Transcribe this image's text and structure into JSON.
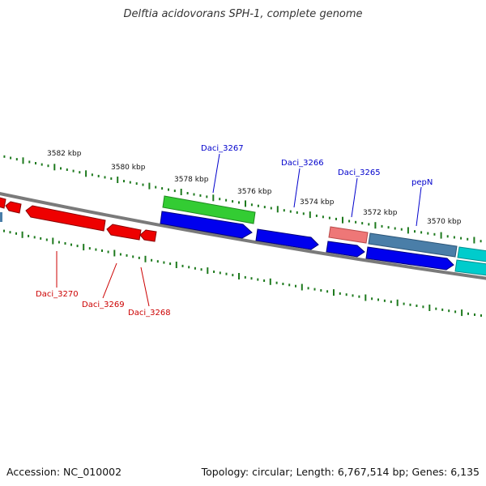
{
  "title": "Delftia acidovorans SPH-1, complete genome",
  "footer": {
    "accession": "Accession: NC_010002",
    "summary": "Topology: circular; Length: 6,767,514 bp; Genes: 6,135"
  },
  "colors": {
    "backbone": "#7a7a7a",
    "tick": "#1e7a1e",
    "forward_label": "#0000cc",
    "reverse_label": "#cc0000",
    "forward_cds": "#0000ee",
    "reverse_cds": "#ee0000",
    "rna": "#33cc33",
    "other": "#ee7777",
    "pepN": "#4a7ea8",
    "cyan_feature": "#00cccc"
  },
  "ticks": [
    {
      "label": "3582 kbp"
    },
    {
      "label": "3580 kbp"
    },
    {
      "label": "3578 kbp"
    },
    {
      "label": "3576 kbp"
    },
    {
      "label": "3574 kbp"
    },
    {
      "label": "3572 kbp"
    },
    {
      "label": "3570 kbp"
    }
  ],
  "gene_labels": [
    {
      "text": "Daci_3267",
      "strand": "forward"
    },
    {
      "text": "Daci_3266",
      "strand": "forward"
    },
    {
      "text": "Daci_3265",
      "strand": "forward"
    },
    {
      "text": "pepN",
      "strand": "forward"
    },
    {
      "text": "Daci_3270",
      "strand": "reverse"
    },
    {
      "text": "Daci_3269",
      "strand": "reverse"
    },
    {
      "text": "Daci_3268",
      "strand": "reverse"
    }
  ]
}
